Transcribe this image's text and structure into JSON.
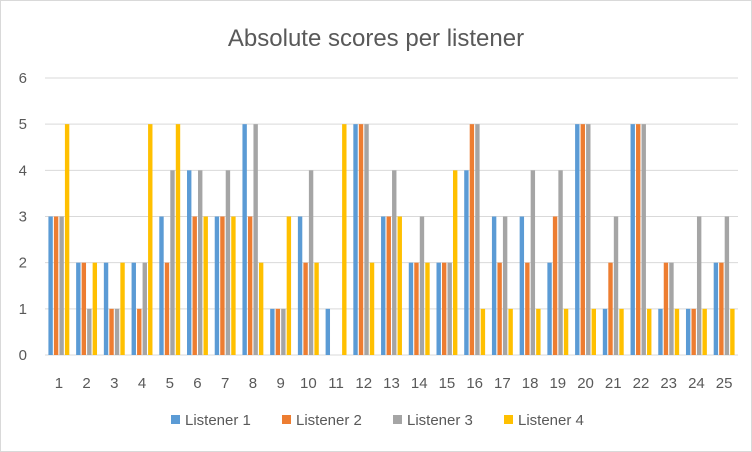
{
  "chart_data": {
    "type": "bar",
    "title": "Absolute scores per listener",
    "xlabel": "",
    "ylabel": "",
    "categories": [
      "1",
      "2",
      "3",
      "4",
      "5",
      "6",
      "7",
      "8",
      "9",
      "10",
      "11",
      "12",
      "13",
      "14",
      "15",
      "16",
      "17",
      "18",
      "19",
      "20",
      "21",
      "22",
      "23",
      "24",
      "25"
    ],
    "ylim": [
      0,
      6
    ],
    "yticks": [
      "0",
      "1",
      "2",
      "3",
      "4",
      "5",
      "6"
    ],
    "grid": true,
    "legend_position": "bottom",
    "series": [
      {
        "name": "Listener 1",
        "color": "#5B9BD5",
        "values": [
          3,
          2,
          2,
          2,
          3,
          4,
          3,
          5,
          1,
          3,
          1,
          5,
          3,
          2,
          2,
          4,
          3,
          3,
          2,
          5,
          1,
          5,
          1,
          1,
          2
        ]
      },
      {
        "name": "Listener 2",
        "color": "#ED7D31",
        "values": [
          3,
          2,
          1,
          1,
          2,
          3,
          3,
          3,
          1,
          2,
          0,
          5,
          3,
          2,
          2,
          5,
          2,
          2,
          3,
          5,
          2,
          5,
          2,
          1,
          2
        ]
      },
      {
        "name": "Listener 3",
        "color": "#A5A5A5",
        "values": [
          3,
          1,
          1,
          2,
          4,
          4,
          4,
          5,
          1,
          4,
          0,
          5,
          4,
          3,
          2,
          5,
          3,
          4,
          4,
          5,
          3,
          5,
          2,
          3,
          3
        ]
      },
      {
        "name": "Listener 4",
        "color": "#FFC000",
        "values": [
          5,
          2,
          2,
          5,
          5,
          3,
          3,
          2,
          3,
          2,
          5,
          2,
          3,
          2,
          4,
          1,
          1,
          1,
          1,
          1,
          1,
          1,
          1,
          1,
          1
        ]
      }
    ]
  }
}
